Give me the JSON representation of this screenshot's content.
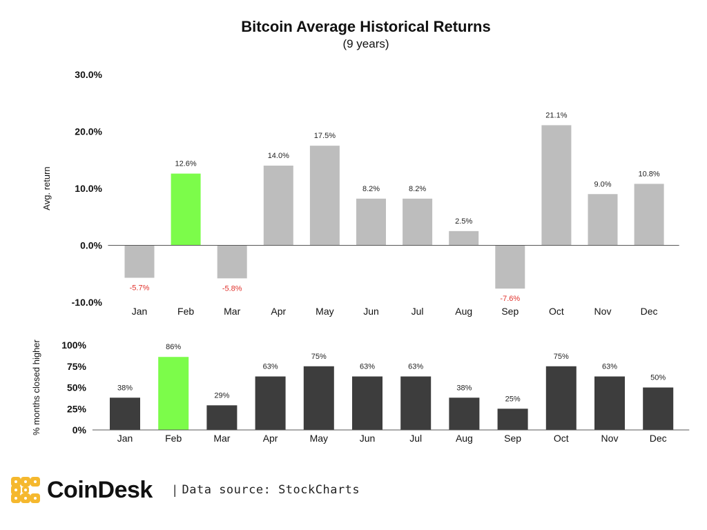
{
  "header": {
    "title": "Bitcoin Average Historical Returns",
    "subtitle": "(9 years)"
  },
  "colors": {
    "highlight": "#7cfc4a",
    "top_bar": "#bdbdbd",
    "bottom_bar": "#3d3d3d",
    "negative_label": "#e0302a",
    "logo": "#f5b82e"
  },
  "chart_data": [
    {
      "type": "bar",
      "ylabel": "Avg. return",
      "ylim": [
        -10,
        30
      ],
      "ytick_labels": [
        "30.0%",
        "20.0%",
        "10.0%",
        "0.0%",
        "-10.0%"
      ],
      "ytick_values": [
        30,
        20,
        10,
        0,
        -10
      ],
      "categories": [
        "Jan",
        "Feb",
        "Mar",
        "Apr",
        "May",
        "Jun",
        "Jul",
        "Aug",
        "Sep",
        "Oct",
        "Nov",
        "Dec"
      ],
      "values": [
        -5.7,
        12.6,
        -5.8,
        14.0,
        17.5,
        8.2,
        8.2,
        2.5,
        -7.6,
        21.1,
        9.0,
        10.8
      ],
      "data_labels": [
        "-5.7%",
        "12.6%",
        "-5.8%",
        "14.0%",
        "17.5%",
        "8.2%",
        "8.2%",
        "2.5%",
        "-7.6%",
        "21.1%",
        "9.0%",
        "10.8%"
      ],
      "highlight_category": "Feb"
    },
    {
      "type": "bar",
      "ylabel": "% months closed higher",
      "ylim": [
        0,
        100
      ],
      "ytick_labels": [
        "100%",
        "75%",
        "50%",
        "25%",
        "0%"
      ],
      "ytick_values": [
        100,
        75,
        50,
        25,
        0
      ],
      "categories": [
        "Jan",
        "Feb",
        "Mar",
        "Apr",
        "May",
        "Jun",
        "Jul",
        "Aug",
        "Sep",
        "Oct",
        "Nov",
        "Dec"
      ],
      "values": [
        38,
        86,
        29,
        63,
        75,
        63,
        63,
        38,
        25,
        75,
        63,
        50
      ],
      "data_labels": [
        "38%",
        "86%",
        "29%",
        "63%",
        "75%",
        "63%",
        "63%",
        "38%",
        "25%",
        "75%",
        "63%",
        "50%"
      ],
      "highlight_category": "Feb"
    }
  ],
  "footer": {
    "logo_text": "CoinDesk",
    "separator": "|",
    "source": "Data source: StockCharts"
  }
}
